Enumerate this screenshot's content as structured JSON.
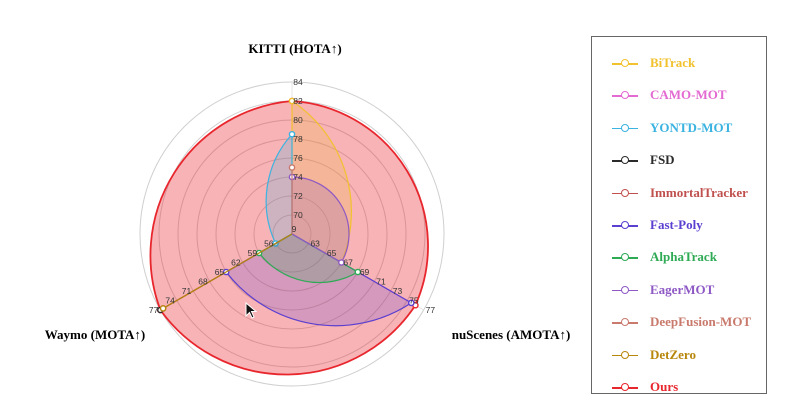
{
  "chart_data": {
    "type": "radar",
    "axes": [
      {
        "name": "KITTI (HOTA↑)",
        "ticks": [
          "70",
          "72",
          "74",
          "76",
          "78",
          "80",
          "82",
          "84"
        ]
      },
      {
        "name": "nuScenes (AMOTA↑)",
        "ticks": [
          "63",
          "65",
          "67",
          "69",
          "71",
          "73",
          "75",
          "77"
        ]
      },
      {
        "name": "Waymo (MOTA↑)",
        "ticks": [
          "56",
          "59",
          "62",
          "65",
          "68",
          "71",
          "74",
          "77"
        ]
      }
    ],
    "center_label": "9",
    "series": [
      {
        "name": "BiTrack",
        "color": "#f2c12e",
        "values": [
          82,
          67,
          null
        ]
      },
      {
        "name": "CAMO-MOT",
        "color": "#e36ad1",
        "values": [
          null,
          75.5,
          null
        ]
      },
      {
        "name": "YONTD-MOT",
        "color": "#3bb3e0",
        "values": [
          78.5,
          null,
          56
        ]
      },
      {
        "name": "FSD",
        "color": "#2b2b2b",
        "values": [
          null,
          null,
          77
        ]
      },
      {
        "name": "ImmortalTracker",
        "color": "#c0504d",
        "values": [
          null,
          null,
          76.5
        ]
      },
      {
        "name": "Fast-Poly",
        "color": "#5b3fd0",
        "values": [
          null,
          75.5,
          65
        ]
      },
      {
        "name": "AlphaTrack",
        "color": "#2eaa55",
        "values": [
          null,
          69,
          59
        ]
      },
      {
        "name": "EagerMOT",
        "color": "#8e59c5",
        "values": [
          74,
          67,
          null
        ]
      },
      {
        "name": "DeepFusion-MOT",
        "color": "#c97a6d",
        "values": [
          75,
          null,
          null
        ]
      },
      {
        "name": "DetZero",
        "color": "#b8860b",
        "values": [
          null,
          null,
          76.5
        ]
      },
      {
        "name": "Ours",
        "color": "#e8262d",
        "values": [
          82,
          76,
          77
        ]
      }
    ]
  }
}
